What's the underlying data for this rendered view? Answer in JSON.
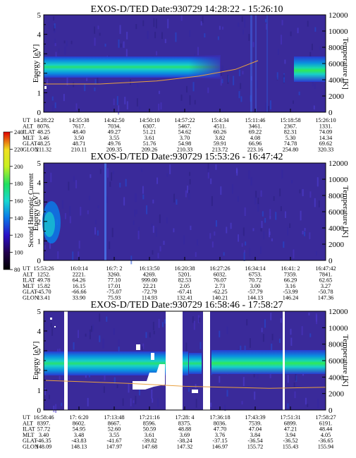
{
  "chart_data": [
    {
      "type": "heatmap",
      "title": "EXOS-D/TED   Date:930729   14:28:22 - 15:26:10",
      "ylabel": "Energy [eV]",
      "y2label": "Temperature [K]",
      "ylim": [
        0,
        5
      ],
      "y2lim": [
        0,
        12000
      ],
      "y_ticks": [
        "0",
        "1",
        "2",
        "3",
        "4",
        "5"
      ],
      "y2_ticks": [
        "0",
        "2000",
        "4000",
        "6000",
        "8000",
        "10000",
        "12000"
      ],
      "orbit_labels": [
        "UT",
        "ALT",
        "ILAT",
        "MLT",
        "GLAT",
        "GLON"
      ],
      "orbit_rows": [
        [
          "14:28:22",
          "14:35:38",
          "14:42:50",
          "14:50:10",
          "14:57:22",
          "15:4:34",
          "15:11:46",
          "15:18:58",
          "15:26:10"
        ],
        [
          "8076.",
          "7617.",
          "7034.",
          "6307.",
          "5467.",
          "4511.",
          "3461.",
          "2367.",
          "1331."
        ],
        [
          "48.25",
          "48.40",
          "49.27",
          "51.21",
          "54.62",
          "60.26",
          "69.22",
          "82.31",
          "74.09"
        ],
        [
          "3.46",
          "3.50",
          "3.55",
          "3.61",
          "3.70",
          "3.82",
          "4.08",
          "5.30",
          "14.34"
        ],
        [
          "48.25",
          "48.71",
          "49.76",
          "51.76",
          "54.98",
          "59.91",
          "66.96",
          "74.78",
          "69.62"
        ],
        [
          "211.32",
          "210.11",
          "209.35",
          "209.26",
          "210.33",
          "213.72",
          "223.16",
          "254.80",
          "320.33"
        ]
      ],
      "band_energy": [
        {
          "x": 0.0,
          "center": 2.45,
          "halfwidth": 0.32
        },
        {
          "x": 0.3,
          "center": 2.45,
          "halfwidth": 0.3
        },
        {
          "x": 0.6,
          "center": 2.45,
          "halfwidth": 0.28
        },
        {
          "x": 0.78,
          "center": 2.5,
          "halfwidth": 0.35
        }
      ],
      "temperature_trace": [
        {
          "x": 0.0,
          "y": 1.45
        },
        {
          "x": 0.2,
          "y": 1.45
        },
        {
          "x": 0.4,
          "y": 1.6
        },
        {
          "x": 0.55,
          "y": 1.85
        },
        {
          "x": 0.68,
          "y": 2.2
        },
        {
          "x": 0.76,
          "y": 2.65
        }
      ]
    },
    {
      "type": "heatmap",
      "title": "EXOS-D/TED   Date:930729   15:53:26 - 16:47:42",
      "ylabel": "Energy [eV]",
      "y2label": "Temperature [K]",
      "ylim": [
        0,
        5
      ],
      "y2lim": [
        0,
        12000
      ],
      "y_ticks": [
        "0",
        "1",
        "2",
        "3",
        "4",
        "5"
      ],
      "y2_ticks": [
        "0",
        "2000",
        "4000",
        "6000",
        "8000",
        "10000",
        "12000"
      ],
      "colorbar": {
        "label": "Second Harmonic Current",
        "ticks": [
          "80",
          "100",
          "120",
          "140",
          "160",
          "180",
          "200",
          "220",
          "240"
        ]
      },
      "orbit_labels": [
        "UT",
        "ALT",
        "ILAT",
        "MLT",
        "GLAT",
        "GLON"
      ],
      "orbit_rows": [
        [
          "15:53:26",
          "16:0:14",
          "16:7: 2",
          "16:13:50",
          "16:20:38",
          "16:27:26",
          "16:34:14",
          "16:41: 2",
          "16:47:42"
        ],
        [
          "1252.",
          "2221.",
          "3260.",
          "4269.",
          "5201.",
          "6032.",
          "6753.",
          "7359.",
          "7841."
        ],
        [
          "49.78",
          "64.26",
          "77.10",
          "999.00",
          "82.53",
          "76.07",
          "70.72",
          "66.29",
          "62.65"
        ],
        [
          "15.82",
          "16.15",
          "17.01",
          "22.21",
          "2.05",
          "2.73",
          "3.00",
          "3.16",
          "3.27"
        ],
        [
          "-45.70",
          "-66.66",
          "-75.07",
          "-72.79",
          "-67.41",
          "-62.25",
          "-57.79",
          "-53.99",
          "-50.78"
        ],
        [
          "13.41",
          "33.90",
          "75.93",
          "114.93",
          "132.41",
          "140.21",
          "144.13",
          "146.24",
          "147.36"
        ]
      ]
    },
    {
      "type": "heatmap",
      "title": "EXOS-D/TED   Date:930729   16:58:46 - 17:58:27",
      "ylabel": "Energy [eV]",
      "y2label": "Temperature [K]",
      "ylim": [
        0,
        5
      ],
      "y2lim": [
        0,
        12000
      ],
      "y_ticks": [
        "0",
        "1",
        "2",
        "3",
        "4",
        "5"
      ],
      "y2_ticks": [
        "0",
        "2000",
        "4000",
        "6000",
        "8000",
        "10000",
        "12000"
      ],
      "orbit_labels": [
        "UT",
        "ALT",
        "ILAT",
        "MLT",
        "GLAT",
        "GLON"
      ],
      "orbit_rows": [
        [
          "16:58:46",
          "17: 6:20",
          "17:13:48",
          "17:21:16",
          "17:28: 4",
          "17:36:18",
          "17:43:39",
          "17:51:31",
          "17:58:27"
        ],
        [
          "8397.",
          "8602.",
          "8667.",
          "8596.",
          "8375.",
          "8036.",
          "7539.",
          "6899.",
          "6191."
        ],
        [
          "57.72",
          "54.95",
          "52.60",
          "50.59",
          "48.88",
          "47.70",
          "47.04",
          "47.21",
          "48.44"
        ],
        [
          "3.40",
          "3.48",
          "3.55",
          "3.61",
          "3.69",
          "3.76",
          "3.84",
          "3.94",
          "4.05"
        ],
        [
          "-46.35",
          "-43.83",
          "-41.67",
          "-39.82",
          "-38.24",
          "-37.15",
          "-36.54",
          "-36.52",
          "-36.65"
        ],
        [
          "148.09",
          "148.13",
          "147.97",
          "147.68",
          "147.32",
          "146.97",
          "155.72",
          "155.43",
          "155.94"
        ]
      ],
      "band_energy": [
        {
          "x": 0.0,
          "center": 2.55,
          "halfwidth": 0.3
        },
        {
          "x": 0.5,
          "center": 2.55,
          "halfwidth": 0.3
        },
        {
          "x": 1.0,
          "center": 2.55,
          "halfwidth": 0.3
        }
      ],
      "temperature_trace": [
        {
          "x": 0.0,
          "y": 1.5
        },
        {
          "x": 0.3,
          "y": 1.35
        },
        {
          "x": 0.5,
          "y": 1.2
        },
        {
          "x": 0.8,
          "y": 1.1
        },
        {
          "x": 1.0,
          "y": 1.15
        }
      ]
    }
  ]
}
